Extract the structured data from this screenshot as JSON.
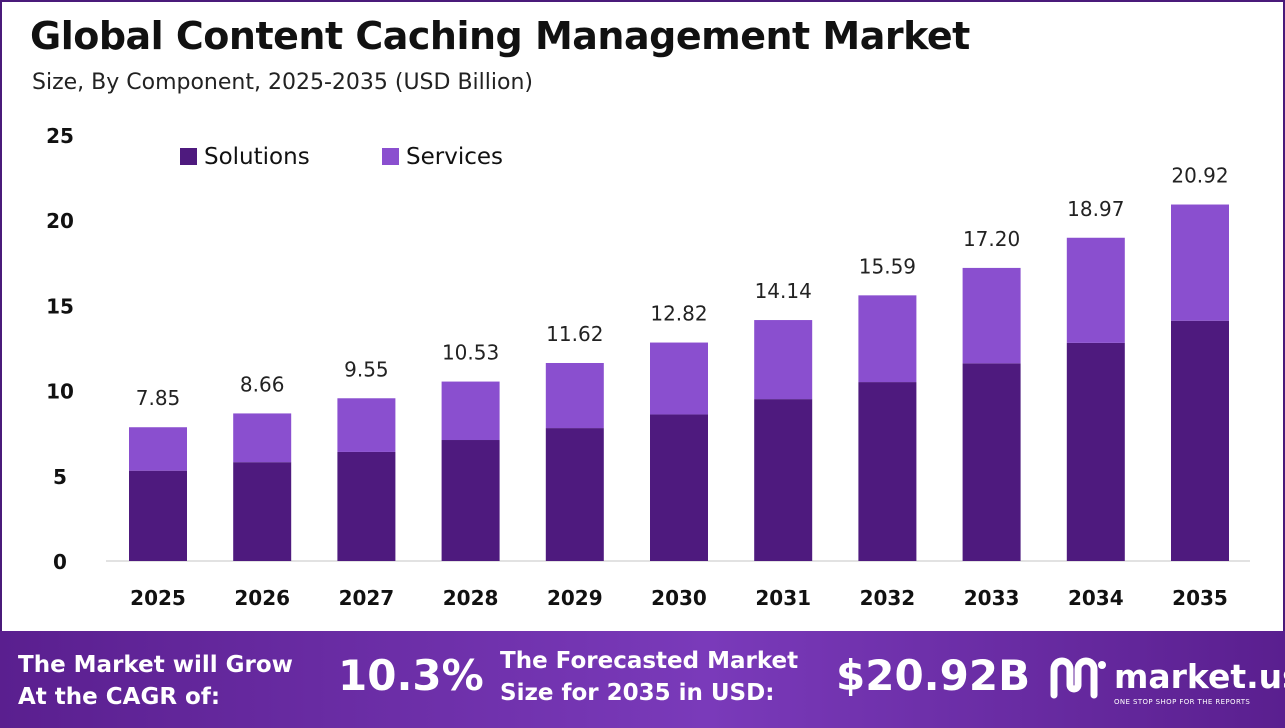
{
  "title": "Global Content Caching Management Market",
  "subtitle": "Size, By Component, 2025-2035 (USD Billion)",
  "colors": {
    "solutions": "#4e1a7e",
    "services": "#8a4fcf",
    "footer_bg": "#5a1f8f"
  },
  "chart_data": {
    "type": "bar",
    "stacked": true,
    "categories": [
      "2025",
      "2026",
      "2027",
      "2028",
      "2029",
      "2030",
      "2031",
      "2032",
      "2033",
      "2034",
      "2035"
    ],
    "series": [
      {
        "name": "Solutions",
        "values": [
          5.3,
          5.8,
          6.4,
          7.1,
          7.8,
          8.6,
          9.5,
          10.5,
          11.6,
          12.8,
          14.1
        ]
      },
      {
        "name": "Services",
        "values": [
          2.55,
          2.86,
          3.15,
          3.43,
          3.82,
          4.22,
          4.64,
          5.09,
          5.6,
          6.17,
          6.82
        ]
      }
    ],
    "totals": [
      "7.85",
      "8.66",
      "9.55",
      "10.53",
      "11.62",
      "12.82",
      "14.14",
      "15.59",
      "17.20",
      "18.97",
      "20.92"
    ],
    "y_ticks": [
      "0",
      "5",
      "10",
      "15",
      "20",
      "25"
    ],
    "ylim": [
      0,
      25
    ],
    "legend_position": "top-left",
    "grid": false
  },
  "footer": {
    "cagr_label_line1": "The Market will Grow",
    "cagr_label_line2": "At the CAGR of:",
    "cagr_value": "10.3%",
    "forecast_label_line1": "The Forecasted Market",
    "forecast_label_line2": "Size for 2035 in USD:",
    "forecast_value": "$20.92B",
    "brand_name": "market.us",
    "brand_tagline": "ONE STOP SHOP FOR THE REPORTS",
    "brand_icon": "market-us-logo-icon"
  }
}
